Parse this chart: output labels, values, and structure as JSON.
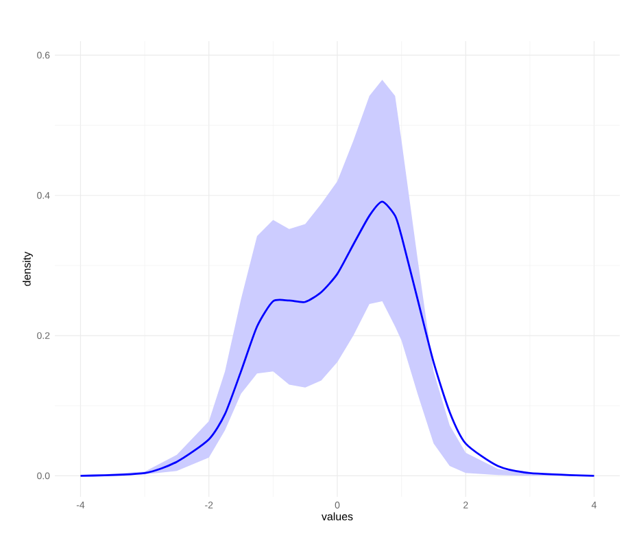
{
  "chart_data": {
    "type": "line",
    "xlabel": "values",
    "ylabel": "density",
    "xlim": [
      -4.4,
      4.4
    ],
    "ylim": [
      -0.03,
      0.62
    ],
    "xticks": [
      -4,
      {
        "value": -3,
        "label": null
      },
      -2,
      {
        "value": -1,
        "label": null
      },
      0,
      {
        "value": 1,
        "label": null
      },
      2,
      {
        "value": 3,
        "label": null
      },
      4
    ],
    "yticks": [
      {
        "value": 0,
        "label": "0.0"
      },
      {
        "value": 0.1,
        "label": null
      },
      0.2,
      {
        "value": 0.3,
        "label": null
      },
      0.4,
      {
        "value": 0.5,
        "label": null
      },
      0.6
    ],
    "grid": true,
    "series": [
      {
        "color": "#0000ff",
        "x": [
          -4,
          -3,
          -2.5,
          -2,
          -1.75,
          -1.5,
          -1.25,
          -1,
          -0.75,
          -0.5,
          -0.25,
          0,
          0.25,
          0.5,
          0.7,
          0.9,
          1,
          1.25,
          1.5,
          1.75,
          2,
          2.5,
          3,
          4
        ],
        "values": [
          0,
          0.004,
          0.02,
          0.052,
          0.088,
          0.149,
          0.213,
          0.249,
          0.25,
          0.248,
          0.262,
          0.288,
          0.33,
          0.371,
          0.391,
          0.371,
          0.342,
          0.252,
          0.162,
          0.091,
          0.046,
          0.014,
          0.004,
          0
        ],
        "upper": [
          0,
          0.006,
          0.03,
          0.078,
          0.149,
          0.252,
          0.342,
          0.365,
          0.352,
          0.359,
          0.388,
          0.42,
          0.478,
          0.542,
          0.565,
          0.542,
          0.478,
          0.31,
          0.149,
          0.072,
          0.033,
          0.01,
          0.002,
          0
        ],
        "lower": [
          0,
          0.002,
          0.007,
          0.026,
          0.065,
          0.117,
          0.146,
          0.149,
          0.13,
          0.126,
          0.136,
          0.162,
          0.2,
          0.245,
          0.249,
          0.213,
          0.193,
          0.117,
          0.046,
          0.014,
          0.004,
          0.001,
          0,
          0
        ]
      }
    ]
  }
}
